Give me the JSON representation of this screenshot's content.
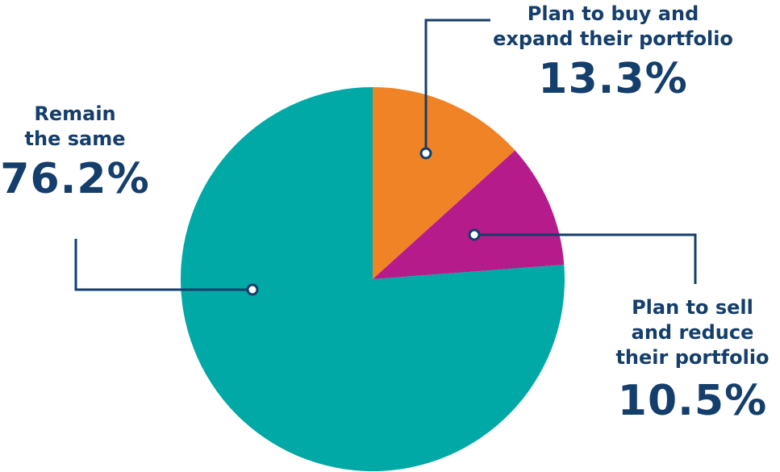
{
  "chart_data": {
    "type": "pie",
    "title": "",
    "slices": [
      {
        "label": "Plan to buy and\nexpand their portfolio",
        "value": 13.3,
        "value_label": "13.3%",
        "color": "#f18327"
      },
      {
        "label": "Plan to sell\nand reduce\ntheir portfolio",
        "value": 10.5,
        "value_label": "10.5%",
        "color": "#b51b8a"
      },
      {
        "label": "Remain\nthe same",
        "value": 76.2,
        "value_label": "76.2%",
        "color": "#00a8a6"
      }
    ],
    "start_angle_deg": 0,
    "direction": "clockwise",
    "leader_color": "#143e6b"
  }
}
